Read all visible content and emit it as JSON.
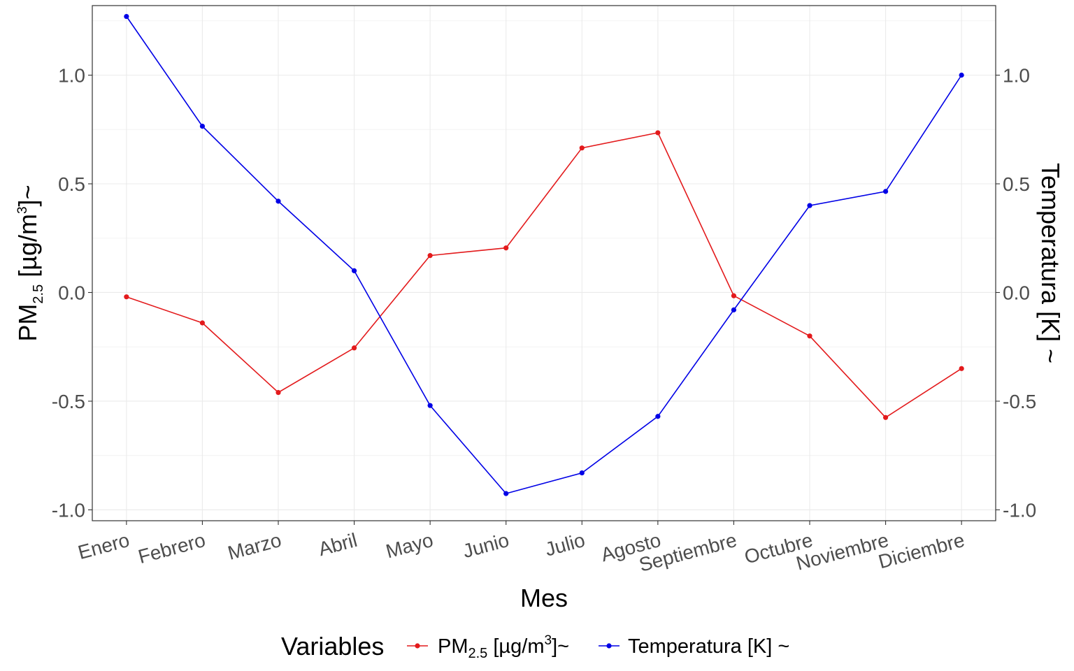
{
  "chart_data": {
    "type": "line",
    "categories": [
      "Enero",
      "Febrero",
      "Marzo",
      "Abril",
      "Mayo",
      "Junio",
      "Julio",
      "Agosto",
      "Septiembre",
      "Octubre",
      "Noviembre",
      "Diciembre"
    ],
    "series": [
      {
        "name": "PM2.5 [µg/m3]~",
        "name_parts": {
          "base": "PM",
          "sub": "2.5",
          "mid": " [µg/m",
          "sup": "3",
          "end": "]~"
        },
        "color": "#e31a1c",
        "values": [
          -0.02,
          -0.14,
          -0.46,
          -0.255,
          0.17,
          0.205,
          0.665,
          0.735,
          -0.015,
          -0.2,
          -0.575,
          -0.35
        ]
      },
      {
        "name": "Temperatura [K] ~",
        "color": "#0000e6",
        "values": [
          1.27,
          0.765,
          0.42,
          0.1,
          -0.52,
          -0.925,
          -0.83,
          -0.57,
          -0.08,
          0.4,
          0.465,
          1.0
        ]
      }
    ],
    "xlabel": "Mes",
    "ylabel": {
      "base": "PM",
      "sub": "2.5",
      "mid": " [µg/m",
      "sup": "3",
      "end": "]~"
    },
    "y2label": "Temperatura [K] ~",
    "ylim": [
      -1.05,
      1.32
    ],
    "yticks": [
      "-1.0",
      "-0.5",
      "0.0",
      "0.5",
      "1.0"
    ],
    "ytick_values": [
      -1.0,
      -0.5,
      0.0,
      0.5,
      1.0
    ],
    "legend_title": "Variables",
    "legend_position": "bottom",
    "grid": true
  }
}
